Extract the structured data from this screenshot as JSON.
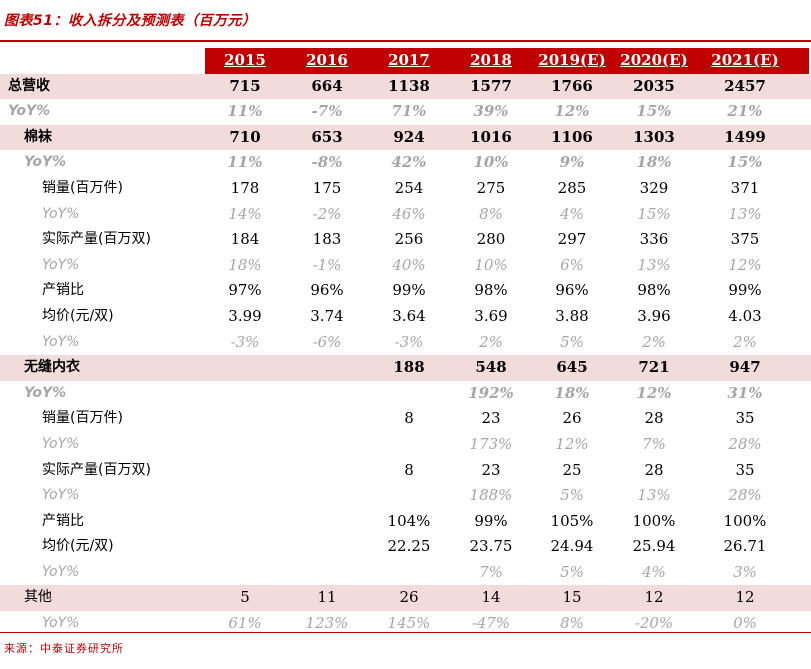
{
  "title": "图表51：收入拆分及预测表（百万元）",
  "source": "来源：中泰证券研究所",
  "headers": [
    "2015",
    "2016",
    "2017",
    "2018",
    "2019(E)",
    "2020(E)",
    "2021(E)"
  ],
  "rows": [
    {
      "label": "总营收",
      "values": [
        "715",
        "664",
        "1138",
        "1577",
        "1766",
        "2035",
        "2457"
      ],
      "style": "shade bold",
      "indent": 8
    },
    {
      "label": "YoY%",
      "values": [
        "11%",
        "-7%",
        "71%",
        "39%",
        "12%",
        "15%",
        "21%"
      ],
      "style": "yoy bold",
      "indent": 8
    },
    {
      "label": "棉袜",
      "values": [
        "710",
        "653",
        "924",
        "1016",
        "1106",
        "1303",
        "1499"
      ],
      "style": "shade bold",
      "indent": 24
    },
    {
      "label": "YoY%",
      "values": [
        "11%",
        "-8%",
        "42%",
        "10%",
        "9%",
        "18%",
        "15%"
      ],
      "style": "yoy bold",
      "indent": 24
    },
    {
      "label": "销量(百万件)",
      "values": [
        "178",
        "175",
        "254",
        "275",
        "285",
        "329",
        "371"
      ],
      "style": "",
      "indent": 42
    },
    {
      "label": "YoY%",
      "values": [
        "14%",
        "-2%",
        "46%",
        "8%",
        "4%",
        "15%",
        "13%"
      ],
      "style": "yoy",
      "indent": 42
    },
    {
      "label": "实际产量(百万双)",
      "values": [
        "184",
        "183",
        "256",
        "280",
        "297",
        "336",
        "375"
      ],
      "style": "",
      "indent": 42
    },
    {
      "label": "YoY%",
      "values": [
        "18%",
        "-1%",
        "40%",
        "10%",
        "6%",
        "13%",
        "12%"
      ],
      "style": "yoy",
      "indent": 42
    },
    {
      "label": "产销比",
      "values": [
        "97%",
        "96%",
        "99%",
        "98%",
        "96%",
        "98%",
        "99%"
      ],
      "style": "",
      "indent": 42
    },
    {
      "label": "均价(元/双)",
      "values": [
        "3.99",
        "3.74",
        "3.64",
        "3.69",
        "3.88",
        "3.96",
        "4.03"
      ],
      "style": "",
      "indent": 42
    },
    {
      "label": "YoY%",
      "values": [
        "-3%",
        "-6%",
        "-3%",
        "2%",
        "5%",
        "2%",
        "2%"
      ],
      "style": "yoy",
      "indent": 42
    },
    {
      "label": "无缝内衣",
      "values": [
        "",
        "",
        "188",
        "548",
        "645",
        "721",
        "947"
      ],
      "style": "shade bold",
      "indent": 24
    },
    {
      "label": "YoY%",
      "values": [
        "",
        "",
        "",
        "192%",
        "18%",
        "12%",
        "31%"
      ],
      "style": "yoy bold",
      "indent": 24
    },
    {
      "label": "销量(百万件)",
      "values": [
        "",
        "",
        "8",
        "23",
        "26",
        "28",
        "35"
      ],
      "style": "",
      "indent": 42
    },
    {
      "label": "YoY%",
      "values": [
        "",
        "",
        "",
        "173%",
        "12%",
        "7%",
        "28%"
      ],
      "style": "yoy",
      "indent": 42
    },
    {
      "label": "实际产量(百万双)",
      "values": [
        "",
        "",
        "8",
        "23",
        "25",
        "28",
        "35"
      ],
      "style": "",
      "indent": 42
    },
    {
      "label": "YoY%",
      "values": [
        "",
        "",
        "",
        "188%",
        "5%",
        "13%",
        "28%"
      ],
      "style": "yoy",
      "indent": 42
    },
    {
      "label": "产销比",
      "values": [
        "",
        "",
        "104%",
        "99%",
        "105%",
        "100%",
        "100%"
      ],
      "style": "",
      "indent": 42
    },
    {
      "label": "均价(元/双)",
      "values": [
        "",
        "",
        "22.25",
        "23.75",
        "24.94",
        "25.94",
        "26.71"
      ],
      "style": "",
      "indent": 42
    },
    {
      "label": "YoY%",
      "values": [
        "",
        "",
        "",
        "7%",
        "5%",
        "4%",
        "3%"
      ],
      "style": "yoy",
      "indent": 42
    },
    {
      "label": "其他",
      "values": [
        "5",
        "11",
        "26",
        "14",
        "15",
        "12",
        "12"
      ],
      "style": "shade",
      "indent": 24
    },
    {
      "label": "YoY%",
      "values": [
        "61%",
        "123%",
        "145%",
        "-47%",
        "8%",
        "-20%",
        "0%"
      ],
      "style": "yoy",
      "indent": 42
    }
  ],
  "colors": {
    "accent": "#c00000",
    "shade": "#f2dcdb",
    "muted": "#a6a6a6"
  }
}
